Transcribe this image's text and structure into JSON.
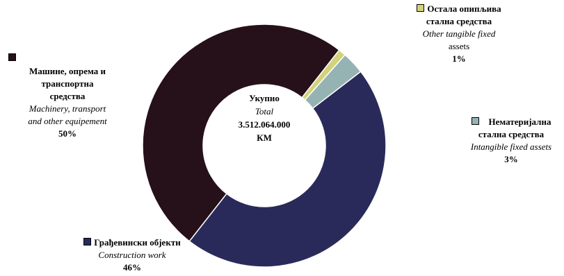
{
  "chart_data": {
    "type": "pie",
    "variant": "donut",
    "center": {
      "title": "Укупно",
      "subtitle": "Total",
      "value": "3.512.064.000",
      "unit": "КМ"
    },
    "slices": [
      {
        "label": "Остала опипљива стална средства",
        "label_en": "Other tangible fixed assets",
        "percent_label": "1%",
        "value": 1,
        "color": "#d4d27a"
      },
      {
        "label": "Нематеријална стална средства",
        "label_en": "Intangible fixed assets",
        "percent_label": "3%",
        "value": 3,
        "color": "#95b3b3"
      },
      {
        "label": "Грађевински објекти",
        "label_en": "Construction work",
        "percent_label": "46%",
        "value": 46,
        "color": "#2a2a5a"
      },
      {
        "label": "Машине, опрема и транспортна средства",
        "label_en": "Machinery, transport and other equipement",
        "percent_label": "50%",
        "value": 50,
        "color": "#26101a"
      }
    ]
  },
  "labels": {
    "other_tangible": {
      "title_1": "Остала опипљива",
      "title_2": "стална средства",
      "en_1": "Other tangible fixed",
      "en_2": "assets",
      "pct": "1%"
    },
    "intangible": {
      "title_1": "Нематеријална",
      "title_2": "стална средства",
      "en": "Intangible fixed assets",
      "pct": "3%"
    },
    "construction": {
      "title": "Грађевински објекти",
      "en": "Construction work",
      "pct": "46%"
    },
    "machinery": {
      "title_1": "Машине, опрема и",
      "title_2": "транспортна",
      "title_3": "средства",
      "en_1": "Machinery, transport",
      "en_2": "and other equipement",
      "pct": "50%"
    }
  }
}
